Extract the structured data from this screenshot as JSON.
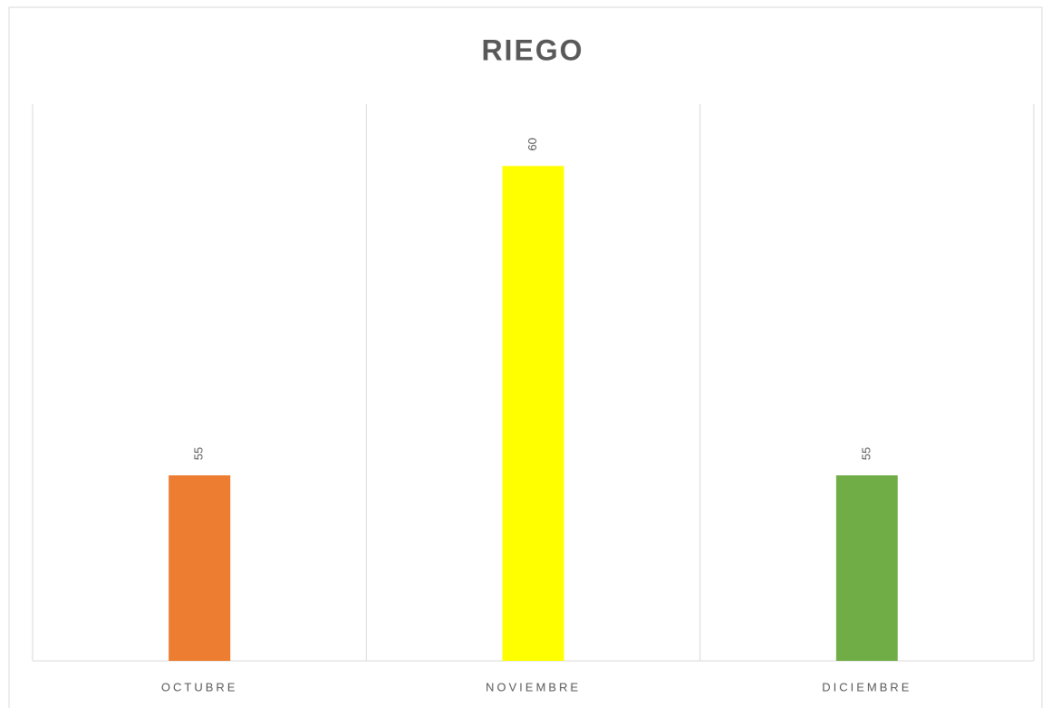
{
  "chart_data": {
    "type": "bar",
    "title": "RIEGO",
    "categories": [
      "OCTUBRE",
      "NOVIEMBRE",
      "DICIEMBRE"
    ],
    "values": [
      55,
      60,
      55
    ],
    "colors": [
      "#ed7d31",
      "#ffff00",
      "#70ad47"
    ],
    "ylim": [
      52,
      61
    ]
  }
}
